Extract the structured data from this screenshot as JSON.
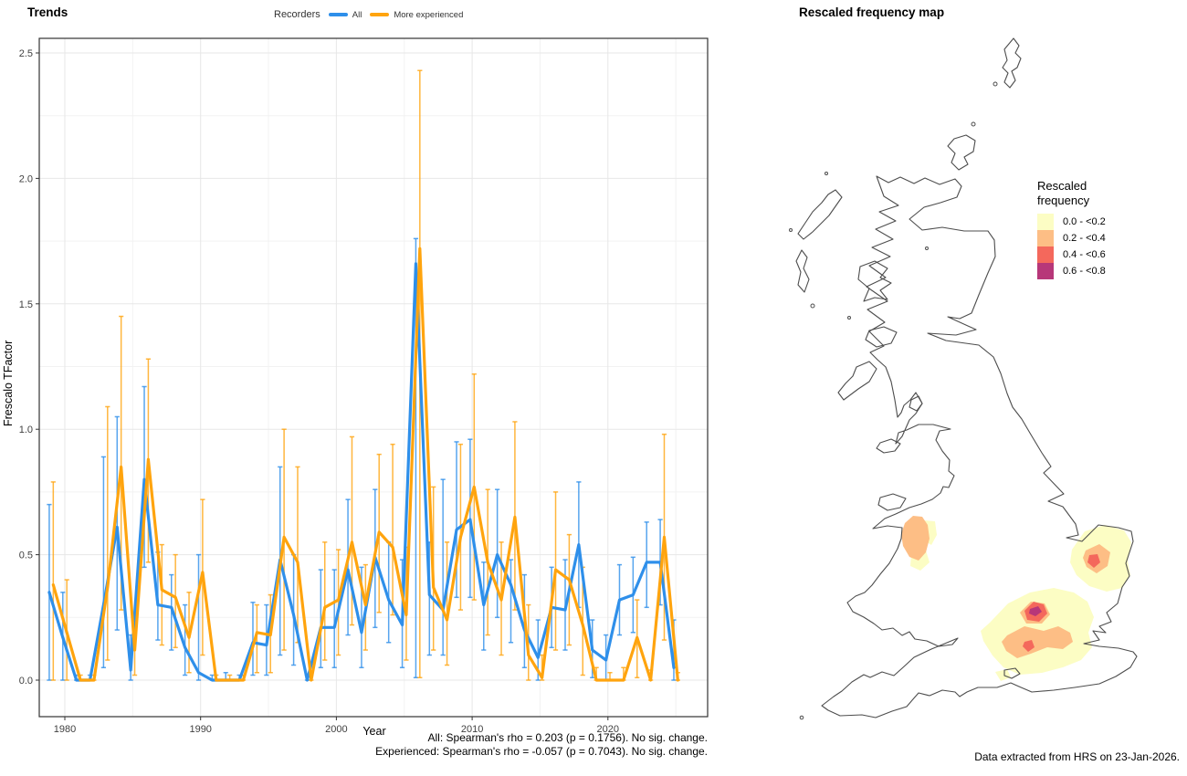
{
  "left": {
    "title": "Trends",
    "legend_title": "Recorders",
    "xlabel": "Year",
    "ylabel": "Frescalo TFactor",
    "caption_line1": "All: Spearman's rho = 0.203 (p = 0.1756). No sig. change.",
    "caption_line2": "Experienced: Spearman's rho = -0.057 (p = 0.7043). No sig. change."
  },
  "right": {
    "title": "Rescaled frequency map",
    "legend_title": "Rescaled frequency",
    "bins": [
      {
        "label": "0.0 - <0.2",
        "color": "#FCFDC4"
      },
      {
        "label": "0.2 - <0.4",
        "color": "#FDBE85"
      },
      {
        "label": "0.4 - <0.6",
        "color": "#F4685C"
      },
      {
        "label": "0.6 - <0.8",
        "color": "#B73779"
      }
    ],
    "caption": "Data extracted from HRS on 23-Jan-2026."
  },
  "chart_data": {
    "type": "line",
    "title": "Trends",
    "xlabel": "Year",
    "ylabel": "Frescalo TFactor",
    "legend_title": "Recorders",
    "xlim": [
      1978.3,
      2026.3
    ],
    "ylim": [
      -0.15,
      2.56
    ],
    "x_ticks": [
      1980,
      1990,
      2000,
      2010,
      2020
    ],
    "x_minor": [
      1985,
      1995,
      2005,
      2015,
      2025
    ],
    "y_ticks": [
      0.0,
      0.5,
      1.0,
      1.5,
      2.0,
      2.5
    ],
    "y_minor": [
      0.25,
      0.75,
      1.25,
      1.75,
      2.25
    ],
    "grid": true,
    "legend_position": "top",
    "error_bars": true,
    "years": [
      1979,
      1980,
      1981,
      1982,
      1983,
      1984,
      1985,
      1986,
      1987,
      1988,
      1989,
      1990,
      1991,
      1992,
      1993,
      1994,
      1995,
      1996,
      1997,
      1998,
      1999,
      2000,
      2001,
      2002,
      2003,
      2004,
      2005,
      2006,
      2007,
      2008,
      2009,
      2010,
      2011,
      2012,
      2013,
      2014,
      2015,
      2016,
      2017,
      2018,
      2019,
      2020,
      2021,
      2022,
      2023,
      2024,
      2025
    ],
    "series": [
      {
        "name": "All",
        "color": "#2E8FEA",
        "values": [
          0.35,
          0.17,
          0,
          0,
          0.3,
          0.61,
          0.04,
          0.8,
          0.3,
          0.29,
          0.13,
          0.03,
          0,
          0,
          0,
          0.15,
          0.14,
          0.48,
          0.26,
          0,
          0.21,
          0.21,
          0.44,
          0.19,
          0.49,
          0.32,
          0.22,
          1.66,
          0.34,
          0.28,
          0.6,
          0.64,
          0.3,
          0.5,
          0.38,
          0.2,
          0.09,
          0.29,
          0.28,
          0.54,
          0.12,
          0.08,
          0.32,
          0.34,
          0.47,
          0.47,
          0.05
        ],
        "lower": [
          0,
          0,
          0,
          0,
          0.05,
          0.2,
          0,
          0.45,
          0.16,
          0.12,
          0.02,
          0,
          0,
          0,
          0,
          0.02,
          0.02,
          0.1,
          0.06,
          0,
          0.05,
          0.05,
          0.18,
          0.05,
          0.21,
          0.15,
          0.05,
          0.01,
          0.1,
          0.1,
          0.33,
          0.33,
          0.12,
          0.25,
          0.15,
          0.05,
          0,
          0.13,
          0.12,
          0.29,
          0.01,
          0,
          0.18,
          0.19,
          0.29,
          0.3,
          0
        ],
        "upper": [
          0.7,
          0.35,
          0.02,
          0.02,
          0.89,
          1.05,
          0.18,
          1.17,
          0.51,
          0.42,
          0.3,
          0.5,
          0.02,
          0.03,
          0.02,
          0.31,
          0.3,
          0.85,
          0.5,
          0.02,
          0.44,
          0.44,
          0.72,
          0.45,
          0.76,
          0.55,
          0.48,
          1.76,
          0.55,
          0.8,
          0.95,
          0.96,
          0.47,
          0.76,
          0.48,
          0.42,
          0.24,
          0.45,
          0.48,
          0.79,
          0.24,
          0.18,
          0.46,
          0.49,
          0.63,
          0.64,
          0.24
        ]
      },
      {
        "name": "More experienced",
        "color": "#FFA40E",
        "values": [
          0.38,
          0.19,
          0,
          0,
          0.37,
          0.85,
          0.12,
          0.88,
          0.36,
          0.33,
          0.17,
          0.43,
          0,
          0,
          0,
          0.19,
          0.18,
          0.57,
          0.47,
          0,
          0.29,
          0.32,
          0.55,
          0.3,
          0.59,
          0.53,
          0.26,
          1.72,
          0.37,
          0.24,
          0.57,
          0.77,
          0.47,
          0.32,
          0.65,
          0.1,
          0.01,
          0.44,
          0.4,
          0.22,
          0,
          0,
          0,
          0.17,
          0,
          0.57,
          0
        ],
        "lower": [
          0,
          0,
          0,
          0,
          0.08,
          0.28,
          0.02,
          0.47,
          0.14,
          0.13,
          0.03,
          0.1,
          0,
          0,
          0,
          0.03,
          0.03,
          0.12,
          0.15,
          0,
          0.08,
          0.1,
          0.22,
          0.12,
          0.27,
          0.26,
          0.08,
          0.01,
          0.12,
          0.06,
          0.28,
          0.32,
          0.18,
          0.1,
          0.28,
          0,
          0,
          0.12,
          0.14,
          0.02,
          0,
          0,
          0,
          0.01,
          0,
          0.16,
          0
        ],
        "upper": [
          0.79,
          0.4,
          0.02,
          0.02,
          1.09,
          1.45,
          0.26,
          1.28,
          0.54,
          0.5,
          0.35,
          0.72,
          0.02,
          0.02,
          0.02,
          0.3,
          0.34,
          1.0,
          0.85,
          0.02,
          0.55,
          0.52,
          0.97,
          0.46,
          0.9,
          0.94,
          0.53,
          2.43,
          0.77,
          0.55,
          0.94,
          1.22,
          0.76,
          0.55,
          1.03,
          0.3,
          0.1,
          0.75,
          0.58,
          0.45,
          0.05,
          0.03,
          0.05,
          0.32,
          0.04,
          0.98,
          0.03
        ]
      }
    ]
  },
  "map_data": {
    "type": "choropleth-grid",
    "region": "Great Britain",
    "legend_title": "Rescaled frequency",
    "bins": [
      "0.0 - <0.2",
      "0.2 - <0.4",
      "0.4 - <0.6",
      "0.6 - <0.8"
    ],
    "bin_colors": [
      "#FCFDC4",
      "#FDBE85",
      "#F4685C",
      "#B73779"
    ],
    "hotspots": [
      {
        "area": "west Wales coast",
        "max_bin": "0.2 - <0.4"
      },
      {
        "area": "East Anglia",
        "max_bin": "0.4 - <0.6"
      },
      {
        "area": "south-east England / London",
        "max_bin": "0.6 - <0.8"
      }
    ]
  }
}
